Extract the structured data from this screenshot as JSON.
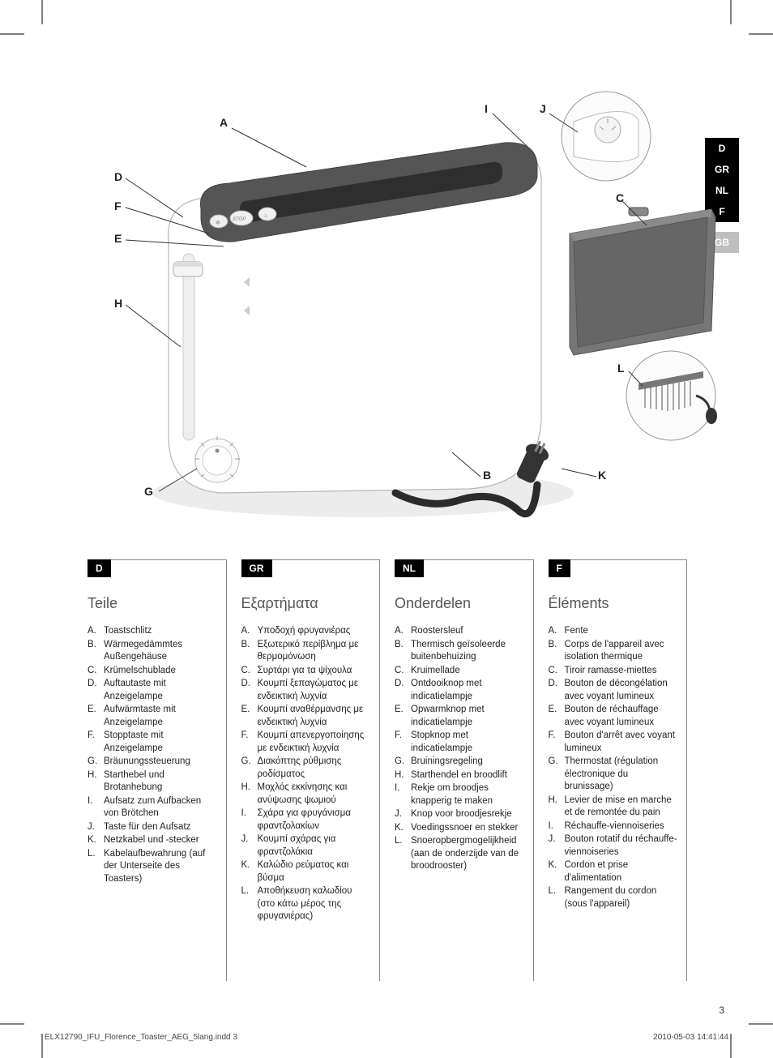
{
  "page_number": "3",
  "footer_file": "ELX12790_IFU_Florence_Toaster_AEG_5lang.indd   3",
  "footer_timestamp": "2010-05-03   14:41:44",
  "lang_tabs": {
    "active": [
      "D",
      "GR",
      "NL",
      "F"
    ],
    "inactive": [
      "GB"
    ]
  },
  "callouts": {
    "A": "A",
    "B": "B",
    "C": "C",
    "D": "D",
    "E": "E",
    "F": "F",
    "G": "G",
    "H": "H",
    "I": "I",
    "J": "J",
    "K": "K",
    "L": "L"
  },
  "columns": [
    {
      "badge": "D",
      "title": "Teile",
      "items": [
        {
          "l": "A.",
          "t": "Toastschlitz"
        },
        {
          "l": "B.",
          "t": "Wärmegedämmtes Außengehäuse"
        },
        {
          "l": "C.",
          "t": "Krümelschublade"
        },
        {
          "l": "D.",
          "t": "Auftautaste mit Anzeigelampe"
        },
        {
          "l": "E.",
          "t": "Aufwärmtaste mit Anzeigelampe"
        },
        {
          "l": "F.",
          "t": "Stopptaste mit Anzeigelampe"
        },
        {
          "l": "G.",
          "t": "Bräunungssteuerung"
        },
        {
          "l": "H.",
          "t": "Starthebel und Brotanhebung"
        },
        {
          "l": "I.",
          "t": "Aufsatz zum Aufbacken von Brötchen"
        },
        {
          "l": "J.",
          "t": "Taste für den Aufsatz"
        },
        {
          "l": "K.",
          "t": "Netzkabel und -stecker"
        },
        {
          "l": "L.",
          "t": "Kabelaufbewahrung (auf der Unterseite des Toasters)"
        }
      ]
    },
    {
      "badge": "GR",
      "title": "Εξαρτήματα",
      "items": [
        {
          "l": "A.",
          "t": "Υποδοχή φρυγανιέρας"
        },
        {
          "l": "B.",
          "t": "Εξωτερικό περίβλημα με θερμομόνωση"
        },
        {
          "l": "C.",
          "t": "Συρτάρι για τα ψίχουλα"
        },
        {
          "l": "D.",
          "t": "Κουμπί ξεπαγώματος με ενδεικτική λυχνία"
        },
        {
          "l": "E.",
          "t": "Κουμπί αναθέρμανσης με ενδεικτική λυχνία"
        },
        {
          "l": "F.",
          "t": "Κουμπί απενεργοποίησης με ενδεικτική λυχνία"
        },
        {
          "l": "G.",
          "t": "Διακόπτης ρύθμισης ροδίσματος"
        },
        {
          "l": "H.",
          "t": "Μοχλός εκκίνησης και ανύψωσης ψωμιού"
        },
        {
          "l": "I.",
          "t": "Σχάρα για φρυγάνισμα φραντζολακίων"
        },
        {
          "l": "J.",
          "t": "Κουμπί σχάρας για φραντζολάκια"
        },
        {
          "l": "K.",
          "t": "Καλώδιο ρεύματος και βύσμα"
        },
        {
          "l": "L.",
          "t": "Αποθήκευση καλωδίου (στο κάτω μέρος της φρυγανιέρας)"
        }
      ]
    },
    {
      "badge": "NL",
      "title": "Onderdelen",
      "items": [
        {
          "l": "A.",
          "t": "Roostersleuf"
        },
        {
          "l": "B.",
          "t": "Thermisch geïsoleerde buitenbehuizing"
        },
        {
          "l": "C.",
          "t": "Kruimellade"
        },
        {
          "l": "D.",
          "t": "Ontdooiknop met indicatielampje"
        },
        {
          "l": "E.",
          "t": "Opwarmknop met indicatielampje"
        },
        {
          "l": "F.",
          "t": "Stopknop met indicatielampje"
        },
        {
          "l": "G.",
          "t": "Bruiningsregeling"
        },
        {
          "l": "H.",
          "t": "Starthendel en broodlift"
        },
        {
          "l": "I.",
          "t": "Rekje om broodjes knapperig te maken"
        },
        {
          "l": "J.",
          "t": "Knop voor broodjesrekje"
        },
        {
          "l": "K.",
          "t": "Voedingssnoer en stekker"
        },
        {
          "l": "L.",
          "t": "Snoeropberg­mogelijkheid (aan de onderzijde van de broodrooster)"
        }
      ]
    },
    {
      "badge": "F",
      "title": "Éléments",
      "items": [
        {
          "l": "A.",
          "t": "Fente"
        },
        {
          "l": "B.",
          "t": "Corps de l'appareil avec isolation thermique"
        },
        {
          "l": "C.",
          "t": "Tiroir ramasse-miettes"
        },
        {
          "l": "D.",
          "t": "Bouton de décongélation avec voyant lumineux"
        },
        {
          "l": "E.",
          "t": "Bouton de réchauffage avec voyant lumineux"
        },
        {
          "l": "F.",
          "t": "Bouton d'arrêt avec voyant lumineux"
        },
        {
          "l": "G.",
          "t": "Thermostat (régulation électronique du brunissage)"
        },
        {
          "l": "H.",
          "t": "Levier de mise en marche et de remontée du pain"
        },
        {
          "l": "I.",
          "t": "Réchauffe-viennoiseries"
        },
        {
          "l": "J.",
          "t": "Bouton rotatif du réchauffe-viennoiseries"
        },
        {
          "l": "K.",
          "t": "Cordon et prise d'alimentation"
        },
        {
          "l": "L.",
          "t": "Rangement du cordon (sous l'appareil)"
        }
      ]
    }
  ],
  "diagram": {
    "colors": {
      "body": "#ffffff",
      "top_dark": "#4f4f4f",
      "outline": "#5a5a5a",
      "shadow": "#d8d8d8",
      "cord": "#2b2b2b",
      "tray": "#6b6b6b",
      "detail_circle": "#f8f8f8"
    }
  }
}
